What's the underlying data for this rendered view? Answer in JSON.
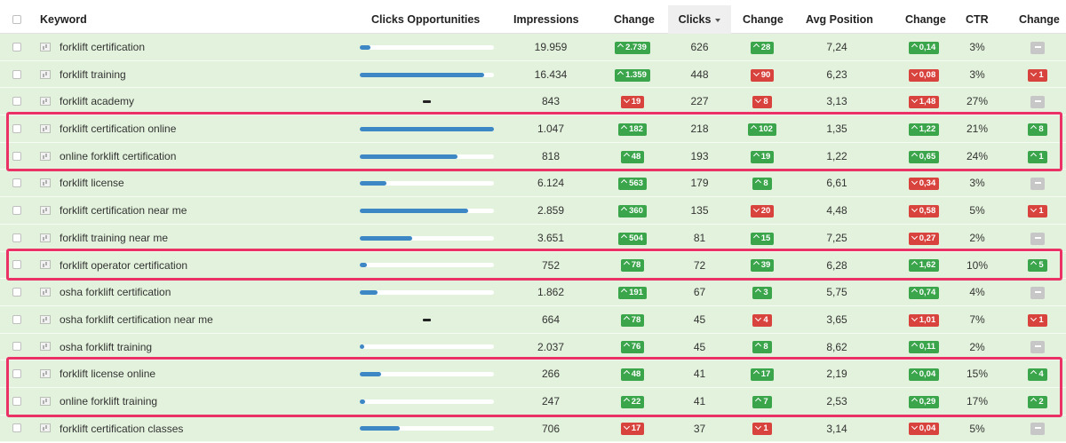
{
  "headers": {
    "keyword": "Keyword",
    "clicks_opportunities": "Clicks Opportunities",
    "impressions": "Impressions",
    "change1": "Change",
    "clicks": "Clicks",
    "change2": "Change",
    "avg_position": "Avg Position",
    "change3": "Change",
    "ctr": "CTR",
    "change4": "Change"
  },
  "sorted_column": "Clicks",
  "rows": [
    {
      "keyword": "forklift certification",
      "opportunity": 0.08,
      "impressions": "19.959",
      "imp_change": {
        "dir": "up",
        "val": "2.739"
      },
      "clicks": "626",
      "clk_change": {
        "dir": "up",
        "val": "28"
      },
      "position": "7,24",
      "pos_change": {
        "dir": "up",
        "val": "0,14"
      },
      "ctr": "3%",
      "ctr_change": {
        "dir": "neutral",
        "val": ""
      }
    },
    {
      "keyword": "forklift training",
      "opportunity": 0.93,
      "impressions": "16.434",
      "imp_change": {
        "dir": "up",
        "val": "1.359"
      },
      "clicks": "448",
      "clk_change": {
        "dir": "down",
        "val": "90"
      },
      "position": "6,23",
      "pos_change": {
        "dir": "down",
        "val": "0,08"
      },
      "ctr": "3%",
      "ctr_change": {
        "dir": "down",
        "val": "1"
      }
    },
    {
      "keyword": "forklift academy",
      "opportunity": null,
      "impressions": "843",
      "imp_change": {
        "dir": "down",
        "val": "19"
      },
      "clicks": "227",
      "clk_change": {
        "dir": "down",
        "val": "8"
      },
      "position": "3,13",
      "pos_change": {
        "dir": "down",
        "val": "1,48"
      },
      "ctr": "27%",
      "ctr_change": {
        "dir": "neutral",
        "val": ""
      }
    },
    {
      "keyword": "forklift certification online",
      "opportunity": 1.0,
      "impressions": "1.047",
      "imp_change": {
        "dir": "up",
        "val": "182"
      },
      "clicks": "218",
      "clk_change": {
        "dir": "up",
        "val": "102"
      },
      "position": "1,35",
      "pos_change": {
        "dir": "up",
        "val": "1,22"
      },
      "ctr": "21%",
      "ctr_change": {
        "dir": "up",
        "val": "8"
      }
    },
    {
      "keyword": "online forklift certification",
      "opportunity": 0.73,
      "impressions": "818",
      "imp_change": {
        "dir": "up",
        "val": "48"
      },
      "clicks": "193",
      "clk_change": {
        "dir": "up",
        "val": "19"
      },
      "position": "1,22",
      "pos_change": {
        "dir": "up",
        "val": "0,65"
      },
      "ctr": "24%",
      "ctr_change": {
        "dir": "up",
        "val": "1"
      }
    },
    {
      "keyword": "forklift license",
      "opportunity": 0.2,
      "impressions": "6.124",
      "imp_change": {
        "dir": "up",
        "val": "563"
      },
      "clicks": "179",
      "clk_change": {
        "dir": "up",
        "val": "8"
      },
      "position": "6,61",
      "pos_change": {
        "dir": "down",
        "val": "0,34"
      },
      "ctr": "3%",
      "ctr_change": {
        "dir": "neutral",
        "val": ""
      }
    },
    {
      "keyword": "forklift certification near me",
      "opportunity": 0.81,
      "impressions": "2.859",
      "imp_change": {
        "dir": "up",
        "val": "360"
      },
      "clicks": "135",
      "clk_change": {
        "dir": "down",
        "val": "20"
      },
      "position": "4,48",
      "pos_change": {
        "dir": "down",
        "val": "0,58"
      },
      "ctr": "5%",
      "ctr_change": {
        "dir": "down",
        "val": "1"
      }
    },
    {
      "keyword": "forklift training near me",
      "opportunity": 0.39,
      "impressions": "3.651",
      "imp_change": {
        "dir": "up",
        "val": "504"
      },
      "clicks": "81",
      "clk_change": {
        "dir": "up",
        "val": "15"
      },
      "position": "7,25",
      "pos_change": {
        "dir": "down",
        "val": "0,27"
      },
      "ctr": "2%",
      "ctr_change": {
        "dir": "neutral",
        "val": ""
      }
    },
    {
      "keyword": "forklift operator certification",
      "opportunity": 0.05,
      "impressions": "752",
      "imp_change": {
        "dir": "up",
        "val": "78"
      },
      "clicks": "72",
      "clk_change": {
        "dir": "up",
        "val": "39"
      },
      "position": "6,28",
      "pos_change": {
        "dir": "up",
        "val": "1,62"
      },
      "ctr": "10%",
      "ctr_change": {
        "dir": "up",
        "val": "5"
      }
    },
    {
      "keyword": "osha forklift certification",
      "opportunity": 0.13,
      "impressions": "1.862",
      "imp_change": {
        "dir": "up",
        "val": "191"
      },
      "clicks": "67",
      "clk_change": {
        "dir": "up",
        "val": "3"
      },
      "position": "5,75",
      "pos_change": {
        "dir": "up",
        "val": "0,74"
      },
      "ctr": "4%",
      "ctr_change": {
        "dir": "neutral",
        "val": ""
      }
    },
    {
      "keyword": "osha forklift certification near me",
      "opportunity": null,
      "impressions": "664",
      "imp_change": {
        "dir": "up",
        "val": "78"
      },
      "clicks": "45",
      "clk_change": {
        "dir": "down",
        "val": "4"
      },
      "position": "3,65",
      "pos_change": {
        "dir": "down",
        "val": "1,01"
      },
      "ctr": "7%",
      "ctr_change": {
        "dir": "down",
        "val": "1"
      }
    },
    {
      "keyword": "osha forklift training",
      "opportunity": 0.03,
      "impressions": "2.037",
      "imp_change": {
        "dir": "up",
        "val": "76"
      },
      "clicks": "45",
      "clk_change": {
        "dir": "up",
        "val": "8"
      },
      "position": "8,62",
      "pos_change": {
        "dir": "up",
        "val": "0,11"
      },
      "ctr": "2%",
      "ctr_change": {
        "dir": "neutral",
        "val": ""
      }
    },
    {
      "keyword": "forklift license online",
      "opportunity": 0.16,
      "impressions": "266",
      "imp_change": {
        "dir": "up",
        "val": "48"
      },
      "clicks": "41",
      "clk_change": {
        "dir": "up",
        "val": "17"
      },
      "position": "2,19",
      "pos_change": {
        "dir": "up",
        "val": "0,04"
      },
      "ctr": "15%",
      "ctr_change": {
        "dir": "up",
        "val": "4"
      }
    },
    {
      "keyword": "online forklift training",
      "opportunity": 0.04,
      "impressions": "247",
      "imp_change": {
        "dir": "up",
        "val": "22"
      },
      "clicks": "41",
      "clk_change": {
        "dir": "up",
        "val": "7"
      },
      "position": "2,53",
      "pos_change": {
        "dir": "up",
        "val": "0,29"
      },
      "ctr": "17%",
      "ctr_change": {
        "dir": "up",
        "val": "2"
      }
    },
    {
      "keyword": "forklift certification classes",
      "opportunity": 0.3,
      "impressions": "706",
      "imp_change": {
        "dir": "down",
        "val": "17"
      },
      "clicks": "37",
      "clk_change": {
        "dir": "down",
        "val": "1"
      },
      "position": "3,14",
      "pos_change": {
        "dir": "down",
        "val": "0,04"
      },
      "ctr": "5%",
      "ctr_change": {
        "dir": "neutral",
        "val": ""
      }
    }
  ],
  "highlighted_rows": [
    [
      3,
      4
    ],
    [
      8,
      8
    ],
    [
      12,
      13
    ]
  ],
  "colors": {
    "row_bg": "#e3f2dc",
    "bar_fill": "#3d87c5",
    "badge_up": "#3aa54b",
    "badge_down": "#d9433d",
    "badge_neutral": "#c7c7c7",
    "highlight": "#ea3267"
  }
}
